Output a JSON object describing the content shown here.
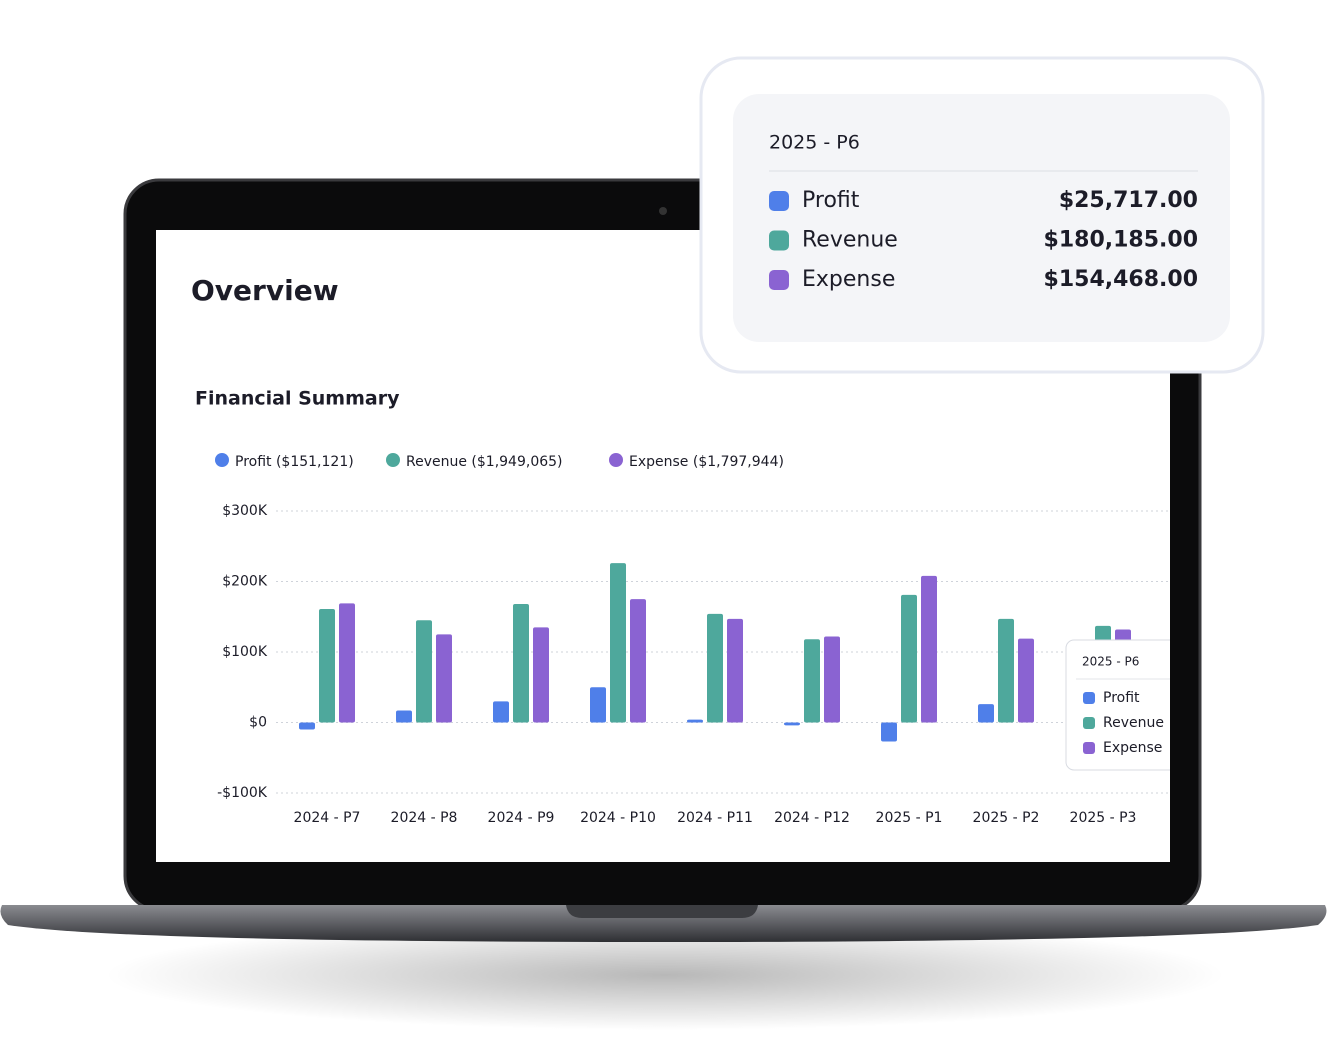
{
  "page": {
    "title": "Overview"
  },
  "chart_data": {
    "type": "bar",
    "title": "Financial Summary",
    "categories": [
      "2024 - P7",
      "2024 - P8",
      "2024 - P9",
      "2024 - P10",
      "2024 - P11",
      "2024 - P12",
      "2025 - P1",
      "2025 - P2",
      "2025 - P3"
    ],
    "series": [
      {
        "name": "Profit ($151,121)",
        "color": "#4f7fe9",
        "values": [
          -10000,
          17000,
          30000,
          50000,
          4000,
          -4000,
          -27000,
          26000,
          null
        ]
      },
      {
        "name": "Revenue ($1,949,065)",
        "color": "#4ea89c",
        "values": [
          161000,
          145000,
          168000,
          226000,
          154000,
          118000,
          181000,
          147000,
          137000
        ]
      },
      {
        "name": "Expense ($1,797,944)",
        "color": "#8a63d2",
        "values": [
          169000,
          125000,
          135000,
          175000,
          147000,
          122000,
          208000,
          119000,
          132000
        ]
      }
    ],
    "ylim": [
      -100000,
      300000
    ],
    "yticks": [
      {
        "value": -100000,
        "label": "-$100K"
      },
      {
        "value": 0,
        "label": "$0"
      },
      {
        "value": 100000,
        "label": "$100K"
      },
      {
        "value": 200000,
        "label": "$200K"
      },
      {
        "value": 300000,
        "label": "$300K"
      }
    ],
    "grid": true
  },
  "tooltip": {
    "title": "2025 - P6",
    "rows": [
      {
        "label": "Profit",
        "value": "$25,717.00",
        "color": "#4f7fe9"
      },
      {
        "label": "Revenue",
        "value": "$180,185.00",
        "color": "#4ea89c"
      },
      {
        "label": "Expense",
        "value": "$154,468.00",
        "color": "#8a63d2"
      }
    ]
  },
  "mini_tooltip": {
    "title": "2025 - P6",
    "labels": [
      "Profit",
      "Revenue",
      "Expense"
    ]
  }
}
